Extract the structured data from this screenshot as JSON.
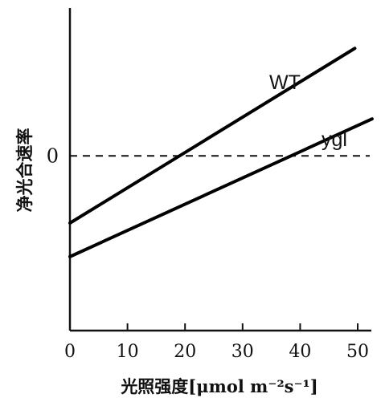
{
  "chart_data": {
    "type": "line",
    "xlabel": "光照强度[μmol m⁻²s⁻¹]",
    "ylabel": "净光合速率",
    "x_ticks": [
      "0",
      "10",
      "20",
      "30",
      "40",
      "50"
    ],
    "xlim": [
      0,
      53
    ],
    "ylim": [
      -2.6,
      2.2
    ],
    "y_ticks": [
      {
        "value": 0,
        "label": "0"
      }
    ],
    "reference_line": {
      "y": 0,
      "style": "dashed"
    },
    "grid": false,
    "series": [
      {
        "name": "WT",
        "x": [
          0,
          49.5
        ],
        "y": [
          -1.0,
          1.6
        ]
      },
      {
        "name": "ygl",
        "x": [
          0,
          52.5
        ],
        "y": [
          -1.5,
          0.55
        ]
      }
    ]
  }
}
